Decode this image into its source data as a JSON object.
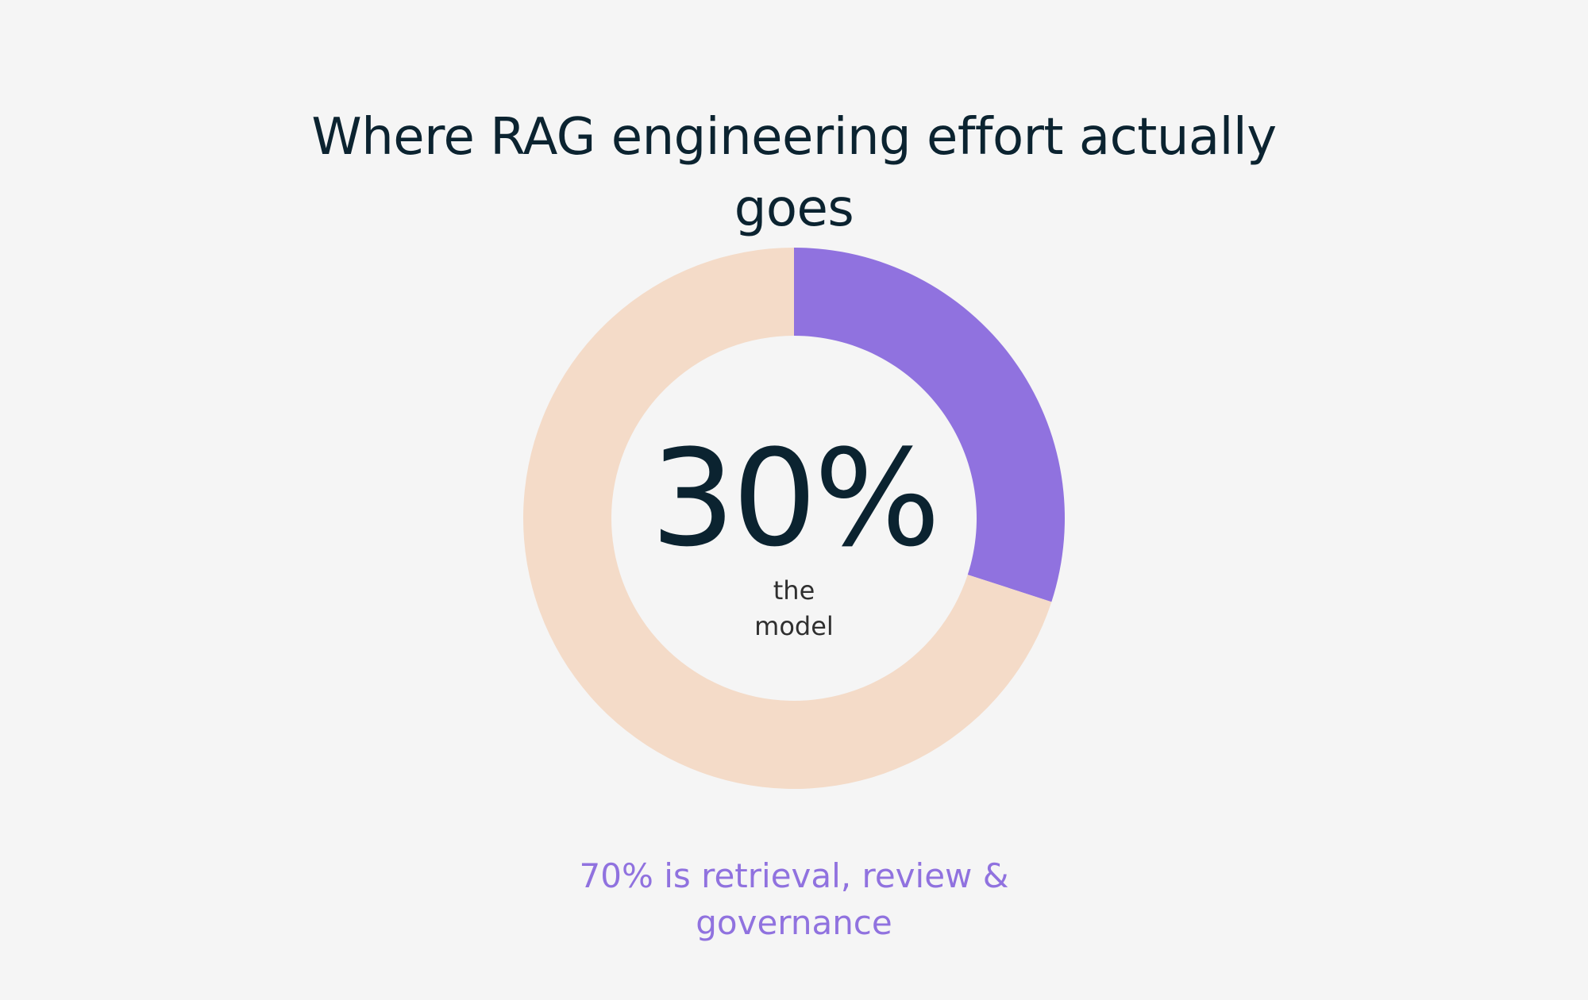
{
  "title": "Where RAG engineering effort actually goes",
  "center": {
    "value_text": "30%",
    "label": "the\nmodel"
  },
  "footnote": "70% is retrieval, review & governance",
  "colors": {
    "background": "#f5f5f5",
    "highlight": "#9072df",
    "remainder": "#f4dbc8",
    "text_dark": "#0b2330",
    "text_label": "#2f2f2f"
  },
  "chart_data": {
    "type": "pie",
    "variant": "donut",
    "title": "Where RAG engineering effort actually goes",
    "slices": [
      {
        "label": "the model",
        "value": 30,
        "color": "#9072df"
      },
      {
        "label": "retrieval, review & governance",
        "value": 70,
        "color": "#f4dbc8"
      }
    ],
    "unit": "%",
    "start_angle": "12 o'clock",
    "direction": "clockwise",
    "legend": "none"
  }
}
